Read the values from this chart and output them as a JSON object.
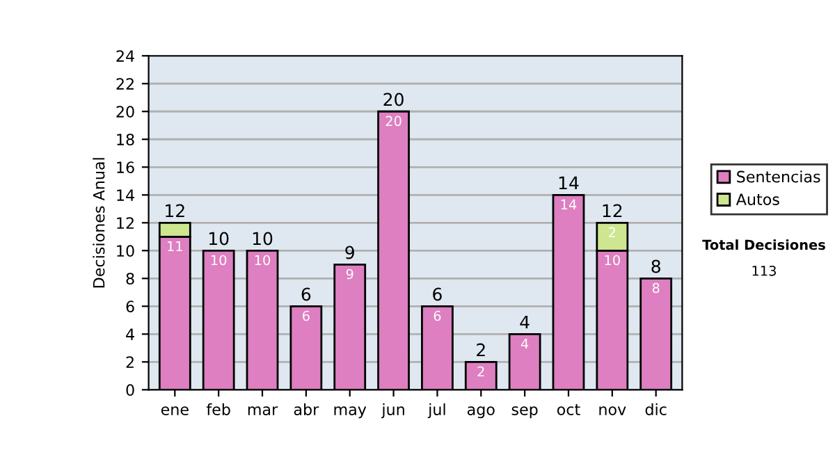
{
  "chart_data": {
    "type": "bar",
    "ylabel": "Decisiones Anual",
    "categories": [
      "ene",
      "feb",
      "mar",
      "abr",
      "may",
      "jun",
      "jul",
      "ago",
      "sep",
      "oct",
      "nov",
      "dic"
    ],
    "stacked": true,
    "series": [
      {
        "name": "Sentencias",
        "color": "#dd7fc0",
        "values": [
          11,
          10,
          10,
          6,
          9,
          20,
          6,
          2,
          4,
          14,
          10,
          8
        ],
        "value_labels": [
          "11",
          "10",
          "10",
          "6",
          "9",
          "20",
          "6",
          "2",
          "4",
          "14",
          "10",
          "8"
        ]
      },
      {
        "name": "Autos",
        "color": "#cde68f",
        "values": [
          1,
          null,
          null,
          null,
          null,
          null,
          null,
          null,
          null,
          null,
          2,
          null
        ],
        "value_labels": [
          null,
          null,
          null,
          null,
          null,
          null,
          null,
          null,
          null,
          null,
          "2",
          null
        ]
      }
    ],
    "totals": [
      "12",
      "10",
      "10",
      "6",
      "9",
      "20",
      "6",
      "2",
      "4",
      "14",
      "12",
      "8"
    ],
    "ylim": [
      0,
      24
    ],
    "yticks": [
      0,
      2,
      4,
      6,
      8,
      10,
      12,
      14,
      16,
      18,
      20,
      22,
      24
    ],
    "grid": "y",
    "legend": "right",
    "annotations": [
      "Total Decisiones",
      "113"
    ]
  }
}
